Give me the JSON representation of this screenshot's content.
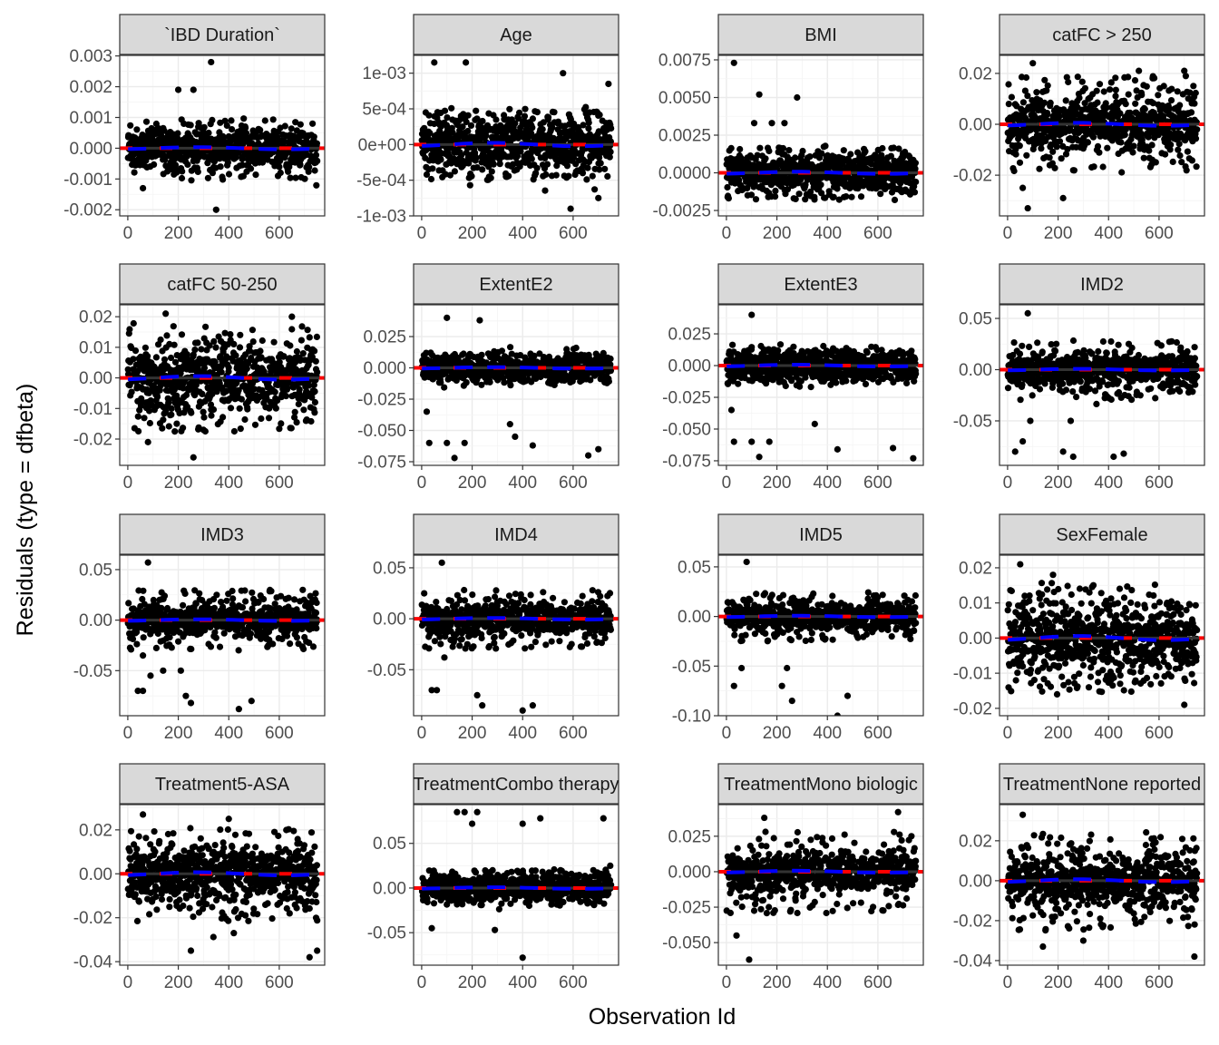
{
  "chart_data": {
    "type": "scatter",
    "layout": "facet-grid 4x4, free y scales",
    "xlabel": "Observation Id",
    "ylabel": "Residuals (type = dfbeta)",
    "x_ticks": [
      0,
      200,
      400,
      600
    ],
    "xlim": [
      -32,
      780
    ],
    "n_observations": 750,
    "grid": true,
    "reference_line": {
      "y": 0,
      "color": "#ff0000",
      "style": "dashed"
    },
    "smooth_color": "#0000ff",
    "fit_line_color": "#333333",
    "point_color": "#000000",
    "panels": [
      {
        "title": "`IBD Duration`",
        "ylim": [
          -0.0022,
          0.00302
        ],
        "y_ticks": [
          -0.002,
          -0.001,
          0,
          0.001,
          0.002,
          0.003
        ],
        "y_tick_labels": [
          "-0.002",
          "-0.001",
          "0.000",
          "0.001",
          "0.002",
          "0.003"
        ],
        "bulk_sd": 0.0003,
        "bulk_tail": 0.001,
        "outliers": [
          [
            330,
            0.0028
          ],
          [
            350,
            -0.002
          ],
          [
            260,
            0.0019
          ],
          [
            200,
            0.0019
          ],
          [
            60,
            -0.0013
          ]
        ]
      },
      {
        "title": "Age",
        "ylim": [
          -0.001,
          0.00125
        ],
        "y_ticks": [
          -0.001,
          -0.0005,
          0,
          0.0005,
          0.001
        ],
        "y_tick_labels": [
          "-1e-03",
          "-5e-04",
          "0e+00",
          "5e-04",
          "1e-03"
        ],
        "bulk_sd": 0.0002,
        "bulk_tail": 0.0005,
        "outliers": [
          [
            50,
            0.00115
          ],
          [
            175,
            0.00115
          ],
          [
            560,
            0.001
          ],
          [
            590,
            -0.0009
          ],
          [
            700,
            -0.00075
          ],
          [
            740,
            0.00085
          ]
        ]
      },
      {
        "title": "BMI",
        "ylim": [
          -0.00286,
          0.0078
        ],
        "y_ticks": [
          -0.0025,
          0,
          0.0025,
          0.005,
          0.0075
        ],
        "y_tick_labels": [
          "-0.0025",
          "0.0000",
          "0.0025",
          "0.0050",
          "0.0075"
        ],
        "bulk_sd": 0.0006,
        "bulk_tail": 0.0018,
        "outliers": [
          [
            30,
            0.0073
          ],
          [
            130,
            0.0052
          ],
          [
            280,
            0.005
          ],
          [
            110,
            0.0033
          ],
          [
            180,
            0.0033
          ],
          [
            230,
            0.0033
          ]
        ]
      },
      {
        "title": "catFC > 250",
        "ylim": [
          -0.036,
          0.0271
        ],
        "y_ticks": [
          -0.02,
          0,
          0.02
        ],
        "y_tick_labels": [
          "-0.02",
          "0.00",
          "0.02"
        ],
        "bulk_sd": 0.005,
        "bulk_tail": 0.019,
        "outliers": [
          [
            100,
            0.024
          ],
          [
            80,
            -0.033
          ],
          [
            60,
            -0.025
          ],
          [
            220,
            -0.029
          ],
          [
            520,
            0.021
          ],
          [
            700,
            0.021
          ]
        ]
      },
      {
        "title": "catFC 50-250",
        "ylim": [
          -0.0286,
          0.0239
        ],
        "y_ticks": [
          -0.02,
          -0.01,
          0,
          0.01,
          0.02
        ],
        "y_tick_labels": [
          "-0.02",
          "-0.01",
          "0.00",
          "0.01",
          "0.02"
        ],
        "bulk_sd": 0.005,
        "bulk_tail": 0.018,
        "outliers": [
          [
            150,
            0.021
          ],
          [
            260,
            -0.026
          ],
          [
            80,
            -0.021
          ],
          [
            650,
            0.02
          ]
        ]
      },
      {
        "title": "ExtentE2",
        "ylim": [
          -0.0779,
          0.0504
        ],
        "y_ticks": [
          -0.075,
          -0.05,
          -0.025,
          0,
          0.025
        ],
        "y_tick_labels": [
          "-0.075",
          "-0.050",
          "-0.025",
          "0.000",
          "0.025"
        ],
        "bulk_sd": 0.005,
        "bulk_tail": 0.012,
        "outliers": [
          [
            100,
            0.04
          ],
          [
            230,
            0.038
          ],
          [
            20,
            -0.035
          ],
          [
            30,
            -0.06
          ],
          [
            130,
            -0.072
          ],
          [
            170,
            -0.06
          ],
          [
            100,
            -0.06
          ],
          [
            350,
            -0.045
          ],
          [
            370,
            -0.055
          ],
          [
            440,
            -0.062
          ],
          [
            660,
            -0.07
          ],
          [
            700,
            -0.065
          ]
        ]
      },
      {
        "title": "ExtentE3",
        "ylim": [
          -0.0786,
          0.0479
        ],
        "y_ticks": [
          -0.075,
          -0.05,
          -0.025,
          0,
          0.025
        ],
        "y_tick_labels": [
          "-0.075",
          "-0.050",
          "-0.025",
          "0.000",
          "0.025"
        ],
        "bulk_sd": 0.006,
        "bulk_tail": 0.013,
        "outliers": [
          [
            100,
            0.04
          ],
          [
            20,
            -0.035
          ],
          [
            30,
            -0.06
          ],
          [
            130,
            -0.072
          ],
          [
            170,
            -0.06
          ],
          [
            100,
            -0.06
          ],
          [
            350,
            -0.046
          ],
          [
            440,
            -0.066
          ],
          [
            660,
            -0.065
          ],
          [
            740,
            -0.073
          ]
        ]
      },
      {
        "title": "IMD2",
        "ylim": [
          -0.0934,
          0.0633
        ],
        "y_ticks": [
          -0.05,
          0,
          0.05
        ],
        "y_tick_labels": [
          "-0.05",
          "0.00",
          "0.05"
        ],
        "bulk_sd": 0.007,
        "bulk_tail": 0.03,
        "outliers": [
          [
            80,
            0.055
          ],
          [
            30,
            -0.08
          ],
          [
            60,
            -0.07
          ],
          [
            90,
            -0.05
          ],
          [
            220,
            -0.08
          ],
          [
            250,
            -0.05
          ],
          [
            260,
            -0.085
          ],
          [
            420,
            -0.085
          ],
          [
            460,
            -0.082
          ]
        ]
      },
      {
        "title": "IMD3",
        "ylim": [
          -0.0946,
          0.0643
        ],
        "y_ticks": [
          -0.05,
          0,
          0.05
        ],
        "y_tick_labels": [
          "-0.05",
          "0.00",
          "0.05"
        ],
        "bulk_sd": 0.007,
        "bulk_tail": 0.03,
        "outliers": [
          [
            80,
            0.057
          ],
          [
            40,
            -0.07
          ],
          [
            60,
            -0.07
          ],
          [
            60,
            -0.035
          ],
          [
            90,
            -0.055
          ],
          [
            140,
            -0.05
          ],
          [
            210,
            -0.05
          ],
          [
            230,
            -0.075
          ],
          [
            250,
            -0.082
          ],
          [
            440,
            -0.088
          ],
          [
            490,
            -0.08
          ]
        ]
      },
      {
        "title": "IMD4",
        "ylim": [
          -0.0951,
          0.0624
        ],
        "y_ticks": [
          -0.05,
          0,
          0.05
        ],
        "y_tick_labels": [
          "-0.05",
          "0.00",
          "0.05"
        ],
        "bulk_sd": 0.007,
        "bulk_tail": 0.03,
        "outliers": [
          [
            80,
            0.055
          ],
          [
            40,
            -0.07
          ],
          [
            60,
            -0.07
          ],
          [
            90,
            -0.038
          ],
          [
            220,
            -0.075
          ],
          [
            240,
            -0.085
          ],
          [
            400,
            -0.09
          ],
          [
            440,
            -0.085
          ]
        ]
      },
      {
        "title": "IMD5",
        "ylim": [
          -0.1,
          0.0618
        ],
        "y_ticks": [
          -0.1,
          -0.05,
          0,
          0.05
        ],
        "y_tick_labels": [
          "-0.10",
          "-0.05",
          "0.00",
          "0.05"
        ],
        "bulk_sd": 0.006,
        "bulk_tail": 0.025,
        "outliers": [
          [
            80,
            0.055
          ],
          [
            30,
            -0.07
          ],
          [
            60,
            -0.052
          ],
          [
            220,
            -0.07
          ],
          [
            260,
            -0.085
          ],
          [
            440,
            -0.1
          ],
          [
            480,
            -0.08
          ],
          [
            240,
            -0.052
          ]
        ]
      },
      {
        "title": "SexFemale",
        "ylim": [
          -0.0221,
          0.0236
        ],
        "y_ticks": [
          -0.02,
          -0.01,
          0,
          0.01,
          0.02
        ],
        "y_tick_labels": [
          "-0.02",
          "-0.01",
          "0.00",
          "0.01",
          "0.02"
        ],
        "bulk_sd": 0.005,
        "bulk_tail": 0.016,
        "outliers": [
          [
            50,
            0.021
          ],
          [
            180,
            0.018
          ],
          [
            700,
            -0.019
          ]
        ]
      },
      {
        "title": "Treatment5-ASA",
        "ylim": [
          -0.0416,
          0.0315
        ],
        "y_ticks": [
          -0.04,
          -0.02,
          0,
          0.02
        ],
        "y_tick_labels": [
          "-0.04",
          "-0.02",
          "0.00",
          "0.02"
        ],
        "bulk_sd": 0.006,
        "bulk_tail": 0.022,
        "outliers": [
          [
            60,
            0.027
          ],
          [
            250,
            -0.035
          ],
          [
            720,
            -0.038
          ],
          [
            750,
            -0.035
          ],
          [
            400,
            0.025
          ],
          [
            420,
            -0.027
          ]
        ]
      },
      {
        "title": "TreatmentCombo therapy",
        "ylim": [
          -0.0864,
          0.0934
        ],
        "y_ticks": [
          -0.05,
          0,
          0.05
        ],
        "y_tick_labels": [
          "-0.05",
          "0.00",
          "0.05"
        ],
        "bulk_sd": 0.007,
        "bulk_tail": 0.02,
        "outliers": [
          [
            140,
            0.085
          ],
          [
            170,
            0.085
          ],
          [
            220,
            0.085
          ],
          [
            200,
            0.072
          ],
          [
            400,
            0.072
          ],
          [
            470,
            0.078
          ],
          [
            720,
            0.078
          ],
          [
            400,
            -0.078
          ],
          [
            40,
            -0.045
          ],
          [
            290,
            -0.047
          ]
        ]
      },
      {
        "title": "TreatmentMono biologic",
        "ylim": [
          -0.0659,
          0.0473
        ],
        "y_ticks": [
          -0.05,
          -0.025,
          0,
          0.025
        ],
        "y_tick_labels": [
          "-0.050",
          "-0.025",
          "0.000",
          "0.025"
        ],
        "bulk_sd": 0.006,
        "bulk_tail": 0.03,
        "outliers": [
          [
            40,
            -0.045
          ],
          [
            90,
            -0.062
          ],
          [
            150,
            0.038
          ],
          [
            680,
            0.042
          ]
        ]
      },
      {
        "title": "TreatmentNone reported",
        "ylim": [
          -0.0423,
          0.0381
        ],
        "y_ticks": [
          -0.04,
          -0.02,
          0,
          0.02
        ],
        "y_tick_labels": [
          "-0.04",
          "-0.02",
          "0.00",
          "0.02"
        ],
        "bulk_sd": 0.006,
        "bulk_tail": 0.025,
        "outliers": [
          [
            60,
            0.033
          ],
          [
            740,
            -0.038
          ],
          [
            140,
            -0.033
          ],
          [
            300,
            -0.03
          ]
        ]
      }
    ]
  }
}
